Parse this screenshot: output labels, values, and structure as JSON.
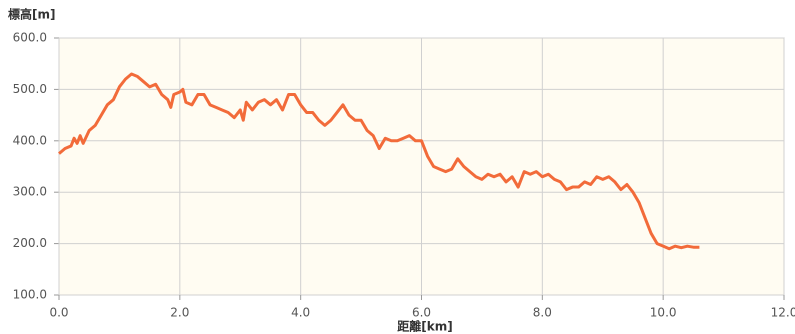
{
  "chart_data": {
    "type": "line",
    "title": "標高[m]",
    "x_label": "距離[km]",
    "x": [
      0.0,
      0.1,
      0.2,
      0.25,
      0.3,
      0.35,
      0.4,
      0.5,
      0.6,
      0.7,
      0.8,
      0.9,
      1.0,
      1.1,
      1.2,
      1.3,
      1.4,
      1.5,
      1.6,
      1.7,
      1.8,
      1.85,
      1.9,
      2.0,
      2.05,
      2.1,
      2.2,
      2.3,
      2.4,
      2.5,
      2.6,
      2.7,
      2.8,
      2.9,
      3.0,
      3.05,
      3.1,
      3.2,
      3.3,
      3.4,
      3.5,
      3.6,
      3.7,
      3.8,
      3.9,
      4.0,
      4.1,
      4.2,
      4.3,
      4.4,
      4.5,
      4.6,
      4.7,
      4.8,
      4.9,
      5.0,
      5.1,
      5.2,
      5.3,
      5.4,
      5.5,
      5.6,
      5.7,
      5.8,
      5.9,
      6.0,
      6.1,
      6.2,
      6.3,
      6.4,
      6.5,
      6.6,
      6.7,
      6.8,
      6.9,
      7.0,
      7.1,
      7.2,
      7.3,
      7.4,
      7.5,
      7.6,
      7.7,
      7.8,
      7.9,
      8.0,
      8.1,
      8.2,
      8.3,
      8.4,
      8.5,
      8.6,
      8.7,
      8.8,
      8.9,
      9.0,
      9.1,
      9.2,
      9.3,
      9.4,
      9.5,
      9.6,
      9.7,
      9.8,
      9.9,
      10.0,
      10.1,
      10.2,
      10.3,
      10.4,
      10.5,
      10.6
    ],
    "series": [
      {
        "name": "標高",
        "color": "#f26b3a",
        "values": [
          375,
          385,
          390,
          405,
          395,
          410,
          395,
          420,
          430,
          450,
          470,
          480,
          505,
          520,
          530,
          525,
          515,
          505,
          510,
          490,
          480,
          465,
          490,
          495,
          500,
          475,
          470,
          490,
          490,
          470,
          465,
          460,
          455,
          445,
          460,
          440,
          475,
          460,
          475,
          480,
          470,
          480,
          460,
          490,
          490,
          470,
          455,
          455,
          440,
          430,
          440,
          455,
          470,
          450,
          440,
          440,
          420,
          410,
          385,
          405,
          400,
          400,
          405,
          410,
          400,
          400,
          370,
          350,
          345,
          340,
          345,
          365,
          350,
          340,
          330,
          325,
          335,
          330,
          335,
          320,
          330,
          310,
          340,
          335,
          340,
          330,
          335,
          325,
          320,
          305,
          310,
          310,
          320,
          315,
          330,
          325,
          330,
          320,
          305,
          315,
          300,
          280,
          250,
          220,
          200,
          195,
          190,
          195,
          192,
          195,
          193,
          193
        ]
      }
    ],
    "xlim": [
      0,
      12
    ],
    "xticks": [
      {
        "value": 0,
        "label": "0.0"
      },
      {
        "value": 2,
        "label": "2.0"
      },
      {
        "value": 4,
        "label": "4.0"
      },
      {
        "value": 6,
        "label": "6.0"
      },
      {
        "value": 8,
        "label": "8.0"
      },
      {
        "value": 10,
        "label": "10.0"
      },
      {
        "value": 12,
        "label": "12.0"
      }
    ],
    "ylim": [
      100,
      600
    ],
    "yticks": [
      {
        "value": 100,
        "label": "100.0"
      },
      {
        "value": 200,
        "label": "200.0"
      },
      {
        "value": 300,
        "label": "300.0"
      },
      {
        "value": 400,
        "label": "400.0"
      },
      {
        "value": 500,
        "label": "500.0"
      },
      {
        "value": 600,
        "label": "600.0"
      }
    ],
    "grid": true
  }
}
